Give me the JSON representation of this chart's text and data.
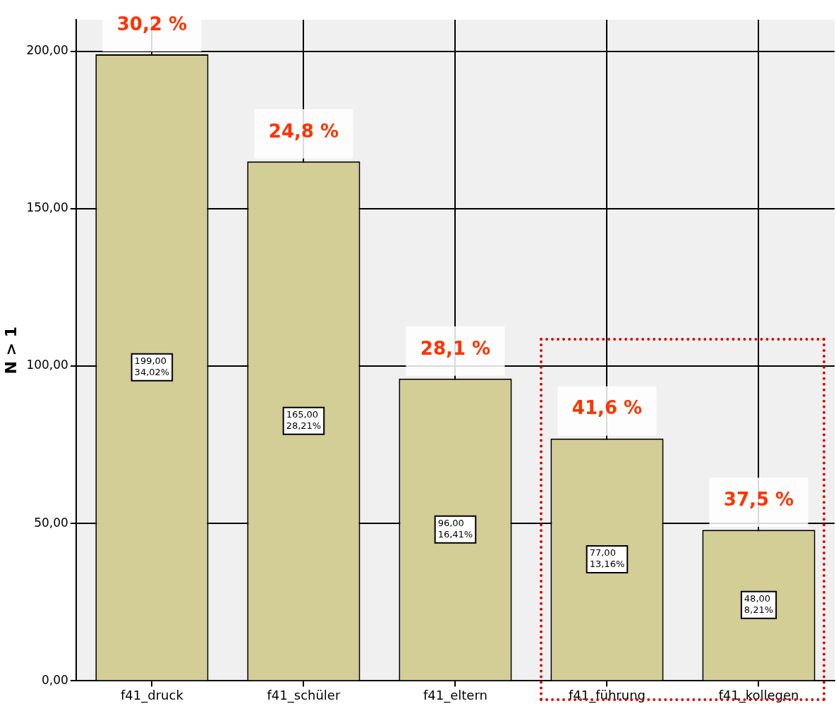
{
  "chart_data": {
    "type": "bar",
    "ylabel": "N > 1",
    "categories": [
      "f41_druck",
      "f41_schüler",
      "f41_eltern",
      "f41_führung",
      "f41_kollegen"
    ],
    "values": [
      199,
      165,
      96,
      77,
      48
    ],
    "color": "#d3cd96",
    "value_labels": [
      "199,00\n34,02%",
      "165,00\n28,21%",
      "96,00\n16,41%",
      "77,00\n13,16%",
      "48,00\n8,21%"
    ],
    "annotations": [
      {
        "text": "30,2 %",
        "x": "f41_druck",
        "y": 199
      },
      {
        "text": "24,8 %",
        "x": "f41_schüler",
        "y": 165
      },
      {
        "text": "28,1 %",
        "x": "f41_eltern",
        "y": 96
      },
      {
        "text": "41,6 %",
        "x": "f41_führung",
        "y": 77
      },
      {
        "text": "37,5 %",
        "x": "f41_kollegen",
        "y": 48
      }
    ],
    "ylim": [
      0,
      210
    ],
    "yticks": [
      {
        "value": 0,
        "label": "0,00"
      },
      {
        "value": 50,
        "label": "50,00"
      },
      {
        "value": 100,
        "label": "100,00"
      },
      {
        "value": 150,
        "label": "150,00"
      },
      {
        "value": 200,
        "label": "200,00"
      }
    ],
    "grid": true,
    "legend": false
  }
}
